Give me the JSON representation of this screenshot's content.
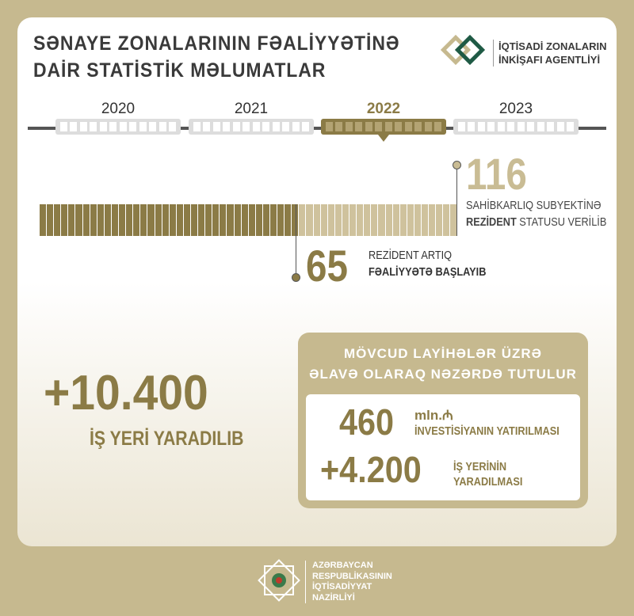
{
  "header": {
    "title_line1": "SƏNAYE ZONALARININ FƏALİYYƏTİNƏ",
    "title_line2": "DAİR STATİSTİK MƏLUMATLAR",
    "agency_line1": "İQTİSADİ ZONALARIN",
    "agency_line2": "İNKİŞAFI AGENTLİYİ"
  },
  "timeline": {
    "years": [
      "2020",
      "2021",
      "2022",
      "2023"
    ],
    "active": "2022"
  },
  "residents": {
    "total": "116",
    "total_text_line1": "SAHİBKARLIQ SUBYEKTİNƏ",
    "total_text_bold": "REZİDENT",
    "total_text_rest": " STATUSU VERİLİB",
    "active": "65",
    "active_text_line1": "REZİDENT ARTIQ",
    "active_text_line2": "FƏALİYYƏTƏ BAŞLAYIB",
    "total_value": 116,
    "active_value": 65
  },
  "jobs": {
    "value": "+10.400",
    "label": "İŞ YERİ YARADILIB"
  },
  "projects": {
    "title_line1": "MÖVCUD LAYİHƏLƏR ÜZRƏ",
    "title_line2": "ƏLAVƏ OLARAQ NƏZƏRDƏ TUTULUR",
    "investment_value": "460",
    "investment_unit": "mln.₼",
    "investment_label": "İNVESTİSİYANIN YATIRILMASI",
    "jobs_value": "+4.200",
    "jobs_label_line1": "İŞ YERİNİN",
    "jobs_label_line2": "YARADILMASI"
  },
  "footer": {
    "line1": "AZƏRBAYCAN",
    "line2": "RESPUBLİKASININ",
    "line3": "İQTİSADİYYAT",
    "line4": "NAZİRLİYİ"
  },
  "colors": {
    "background": "#c6b98f",
    "dark_gold": "#8b7b46",
    "light_gold": "#cfc29d",
    "text": "#333333"
  }
}
